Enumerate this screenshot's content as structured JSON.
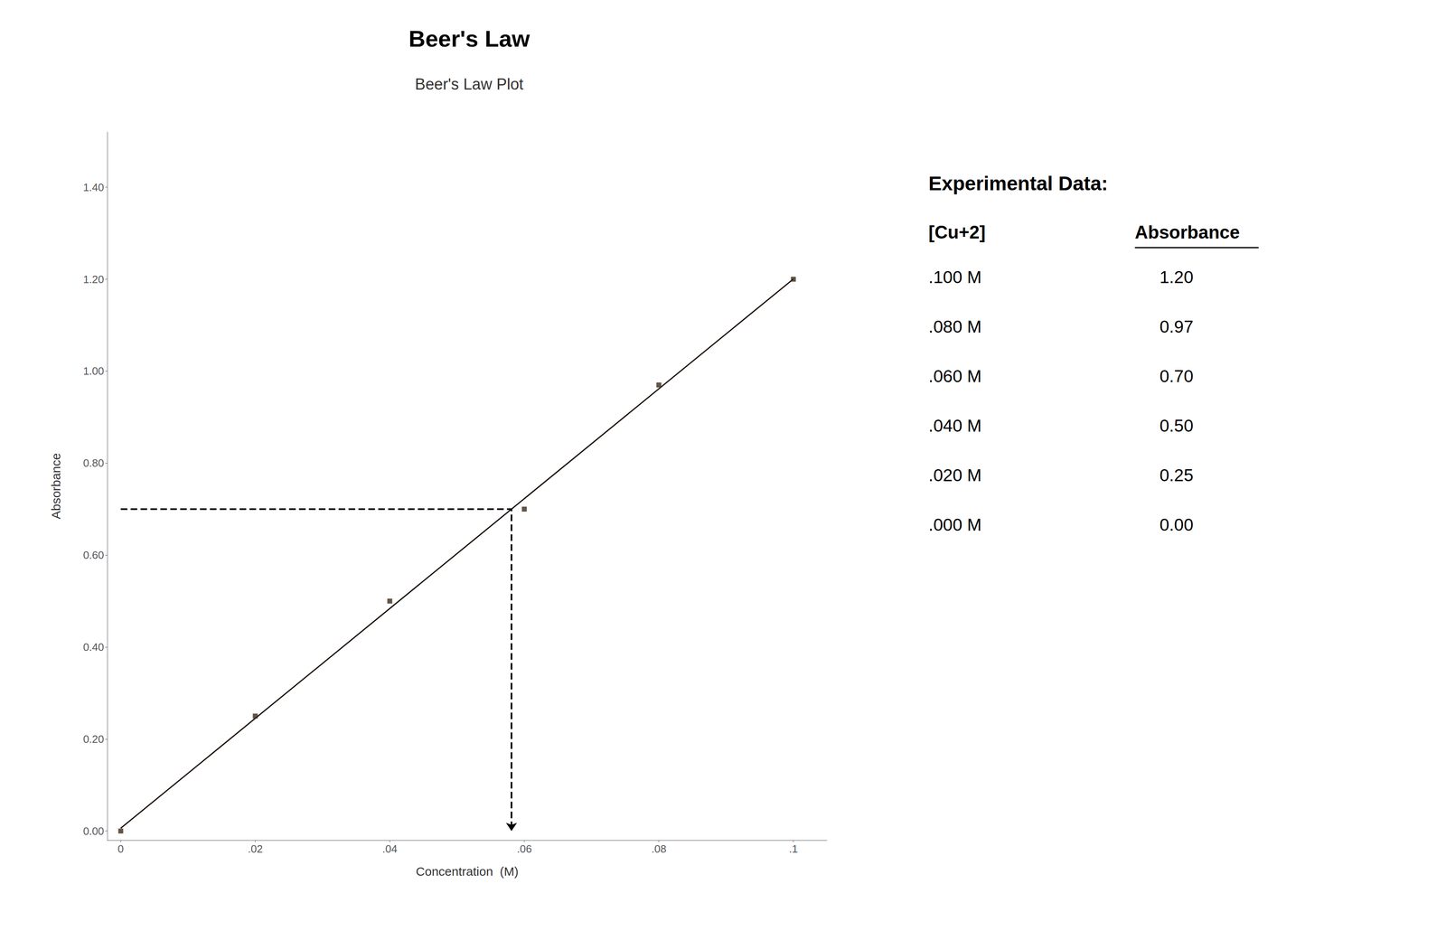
{
  "chart_data": {
    "type": "scatter",
    "title": "Beer's Law",
    "subtitle": "Beer's Law Plot",
    "xlabel": "Concentration  (M)",
    "ylabel": "Absorbance",
    "series": [
      {
        "type": "scatter",
        "marker": "square",
        "color": "#3a2a18",
        "x": [
          0.0,
          0.02,
          0.04,
          0.06,
          0.08,
          0.1
        ],
        "values": [
          0.0,
          0.25,
          0.5,
          0.7,
          0.97,
          1.2
        ]
      },
      {
        "type": "line",
        "line_style": "solid",
        "color": "#1a0a00",
        "x": [
          0,
          0.1
        ],
        "values": [
          0.0061905,
          1.2004762
        ]
      },
      {
        "type": "line",
        "line_style": "dashed",
        "marker": "arrow",
        "color": "#000000",
        "x": [
          0,
          0.0580941,
          0.0580941
        ],
        "values": [
          0.7,
          0.7,
          0
        ]
      }
    ],
    "xlim": [
      -0.002,
      0.105
    ],
    "xticks": [
      0,
      {
        "value": 0.02,
        "label": ".02"
      },
      {
        "value": 0.04,
        "label": ".04"
      },
      {
        "value": 0.06,
        "label": ".06"
      },
      {
        "value": 0.08,
        "label": ".08"
      },
      {
        "value": 0.1,
        "label": ".1"
      }
    ],
    "ylim": [
      -0.02,
      1.52
    ],
    "yticks": [
      {
        "value": 0.0,
        "label": "0.00"
      },
      {
        "value": 0.2,
        "label": "0.20"
      },
      {
        "value": 0.4,
        "label": "0.40"
      },
      {
        "value": 0.6,
        "label": "0.60"
      },
      {
        "value": 0.8,
        "label": "0.80"
      },
      {
        "value": 1.0,
        "label": "1.00"
      },
      {
        "value": 1.2,
        "label": "1.20"
      },
      {
        "value": 1.4,
        "label": "1.40"
      }
    ],
    "grid": false,
    "table": {
      "title": "Experimental Data:",
      "columns": [
        "[Cu+2]",
        "Absorbance"
      ],
      "rows": [
        [
          ".100 M",
          "1.20"
        ],
        [
          ".080 M",
          "0.97"
        ],
        [
          ".060 M",
          "0.70"
        ],
        [
          ".040 M",
          "0.50"
        ],
        [
          ".020 M",
          "0.25"
        ],
        [
          ".000 M",
          "0.00"
        ]
      ]
    }
  }
}
